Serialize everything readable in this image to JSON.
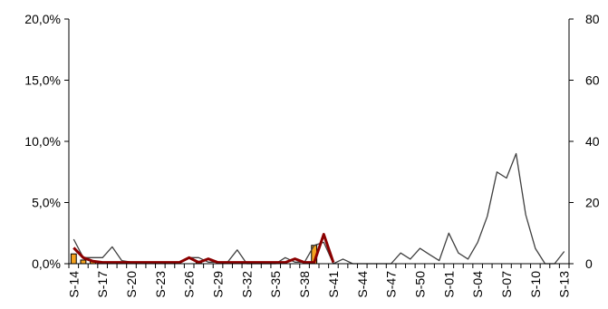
{
  "chart_data": {
    "type": "bar+line",
    "categories": [
      "S-14",
      "S-15",
      "S-16",
      "S-17",
      "S-18",
      "S-19",
      "S-20",
      "S-21",
      "S-22",
      "S-23",
      "S-24",
      "S-25",
      "S-26",
      "S-27",
      "S-28",
      "S-29",
      "S-30",
      "S-31",
      "S-32",
      "S-33",
      "S-34",
      "S-35",
      "S-36",
      "S-37",
      "S-38",
      "S-39",
      "S-40",
      "S-41",
      "S-42",
      "S-43",
      "S-44",
      "S-45",
      "S-46",
      "S-47",
      "S-48",
      "S-49",
      "S-50",
      "S-51",
      "S-52",
      "S-01",
      "S-02",
      "S-03",
      "S-04",
      "S-05",
      "S-06",
      "S-07",
      "S-08",
      "S-09",
      "S-10",
      "S-11",
      "S-12",
      "S-13"
    ],
    "x_tick_labels": [
      "S-14",
      "S-17",
      "S-20",
      "S-23",
      "S-26",
      "S-29",
      "S-32",
      "S-35",
      "S-38",
      "S-41",
      "S-44",
      "S-47",
      "S-50",
      "S-01",
      "S-04",
      "S-07",
      "S-10",
      "S-13"
    ],
    "left_axis": {
      "min": 0,
      "max": 20,
      "ticks": [
        "0,0%",
        "5,0%",
        "10,0%",
        "15,0%",
        "20,0%"
      ]
    },
    "right_axis": {
      "min": 0,
      "max": 80,
      "ticks": [
        "0",
        "20",
        "40",
        "60",
        "80"
      ]
    },
    "series": [
      {
        "kind": "bar",
        "axis": "left",
        "color": "#f5a21f",
        "values": [
          0.8,
          0.3,
          0.2,
          0,
          0,
          0,
          0,
          0,
          0,
          0,
          0,
          0,
          0,
          0.2,
          0,
          0,
          0,
          0,
          0,
          0,
          0,
          0,
          0,
          0,
          0,
          1.5,
          0,
          0,
          0,
          0,
          0,
          0,
          0,
          0,
          0,
          0,
          0,
          0,
          0,
          0,
          0,
          0,
          0,
          0,
          0,
          0,
          0,
          0,
          0,
          0,
          0,
          0
        ]
      },
      {
        "kind": "line",
        "axis": "left",
        "color": "#8b0000",
        "values": [
          1.3,
          0.5,
          0.2,
          0.1,
          0.1,
          0.1,
          0.1,
          0.1,
          0.1,
          0.1,
          0.1,
          0.1,
          0.5,
          0.1,
          0.4,
          0.1,
          0.1,
          0.1,
          0.1,
          0.1,
          0.1,
          0.1,
          0.1,
          0.4,
          0.1,
          0.1,
          2.4,
          0.1,
          null,
          null,
          null,
          null,
          null,
          null,
          null,
          null,
          null,
          null,
          null,
          null,
          null,
          null,
          null,
          null,
          null,
          null,
          null,
          null,
          null,
          null,
          null,
          null
        ]
      },
      {
        "kind": "line",
        "axis": "right",
        "color": "#404040",
        "values": [
          8,
          2,
          2,
          2,
          5.5,
          1,
          0.5,
          0.5,
          0.5,
          0.5,
          0.5,
          0.5,
          2,
          2,
          0.5,
          0.5,
          0.5,
          4.5,
          0,
          0,
          0,
          0,
          2,
          0.5,
          0.5,
          6,
          7,
          0,
          1.5,
          0,
          0,
          0,
          0,
          0,
          3.5,
          1.5,
          5,
          3,
          1,
          10,
          3.5,
          1.5,
          7,
          15.5,
          30,
          28,
          36,
          16,
          5,
          0,
          0,
          4
        ]
      }
    ]
  }
}
